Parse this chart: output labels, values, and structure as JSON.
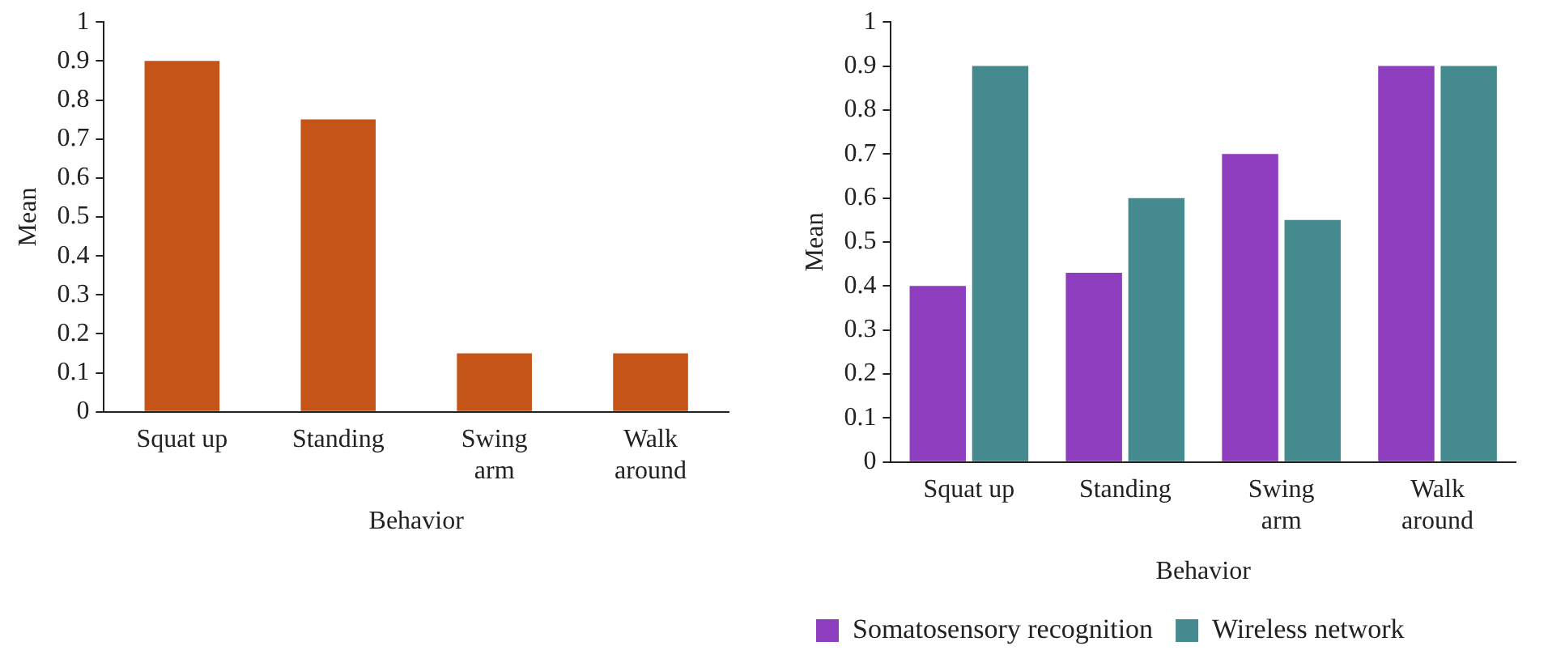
{
  "chart_data": [
    {
      "type": "bar",
      "xlabel": "Behavior",
      "ylabel": "Mean",
      "categories": [
        "Squat up",
        "Standing",
        "Swing arm",
        "Walk around"
      ],
      "values": [
        0.9,
        0.75,
        0.15,
        0.15
      ],
      "color": "#c55418",
      "ylim": [
        0,
        1
      ],
      "yticks": [
        0,
        0.1,
        0.2,
        0.3,
        0.4,
        0.5,
        0.6,
        0.7,
        0.8,
        0.9,
        1
      ],
      "grid": false,
      "legend": false
    },
    {
      "type": "bar",
      "xlabel": "Behavior",
      "ylabel": "Mean",
      "categories": [
        "Squat up",
        "Standing",
        "Swing arm",
        "Walk around"
      ],
      "series": [
        {
          "name": "Somatosensory recognition",
          "color": "#8e3dbf",
          "values": [
            0.4,
            0.43,
            0.7,
            0.9
          ]
        },
        {
          "name": "Wireless network",
          "color": "#458a8f",
          "values": [
            0.9,
            0.6,
            0.55,
            0.9
          ]
        }
      ],
      "ylim": [
        0,
        1
      ],
      "yticks": [
        0,
        0.1,
        0.2,
        0.3,
        0.4,
        0.5,
        0.6,
        0.7,
        0.8,
        0.9,
        1
      ],
      "grid": false,
      "legend": "bottom"
    }
  ]
}
